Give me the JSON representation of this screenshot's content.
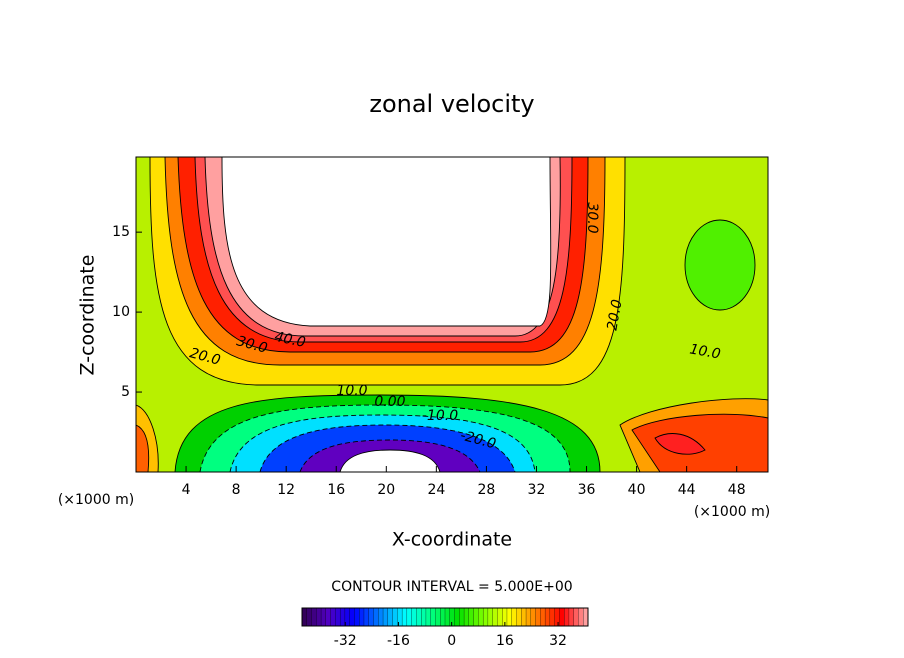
{
  "chart_data": {
    "type": "contour",
    "title": "zonal velocity",
    "x_label": "X-coordinate",
    "y_label": "Z-coordinate",
    "x_unit_left": "(×1000 m)",
    "x_unit_right": "(×1000 m)",
    "xlim": [
      0,
      50.5
    ],
    "ylim": [
      0,
      19.7
    ],
    "xticks": [
      4,
      8,
      12,
      16,
      20,
      24,
      28,
      32,
      36,
      40,
      44,
      48
    ],
    "yticks": [
      5,
      10,
      15
    ],
    "contour_labels": [
      "40.0",
      "30.0",
      "20.0",
      "10.0",
      "0.00",
      "-10.0",
      "-20.0",
      "30.0",
      "20.0",
      "10.0"
    ],
    "contour_interval_label": "CONTOUR INTERVAL = 5.000E+00",
    "colorbar": {
      "lim": [
        -45,
        41
      ],
      "ticks": [
        -32,
        -16,
        0,
        16,
        32
      ],
      "colors": [
        "#300050",
        "#5000c0",
        "#0000ff",
        "#0080ff",
        "#00ffff",
        "#00ff80",
        "#00e000",
        "#80ff00",
        "#ffff00",
        "#ff8000",
        "#ff0000",
        "#ffb0b0"
      ]
    }
  }
}
